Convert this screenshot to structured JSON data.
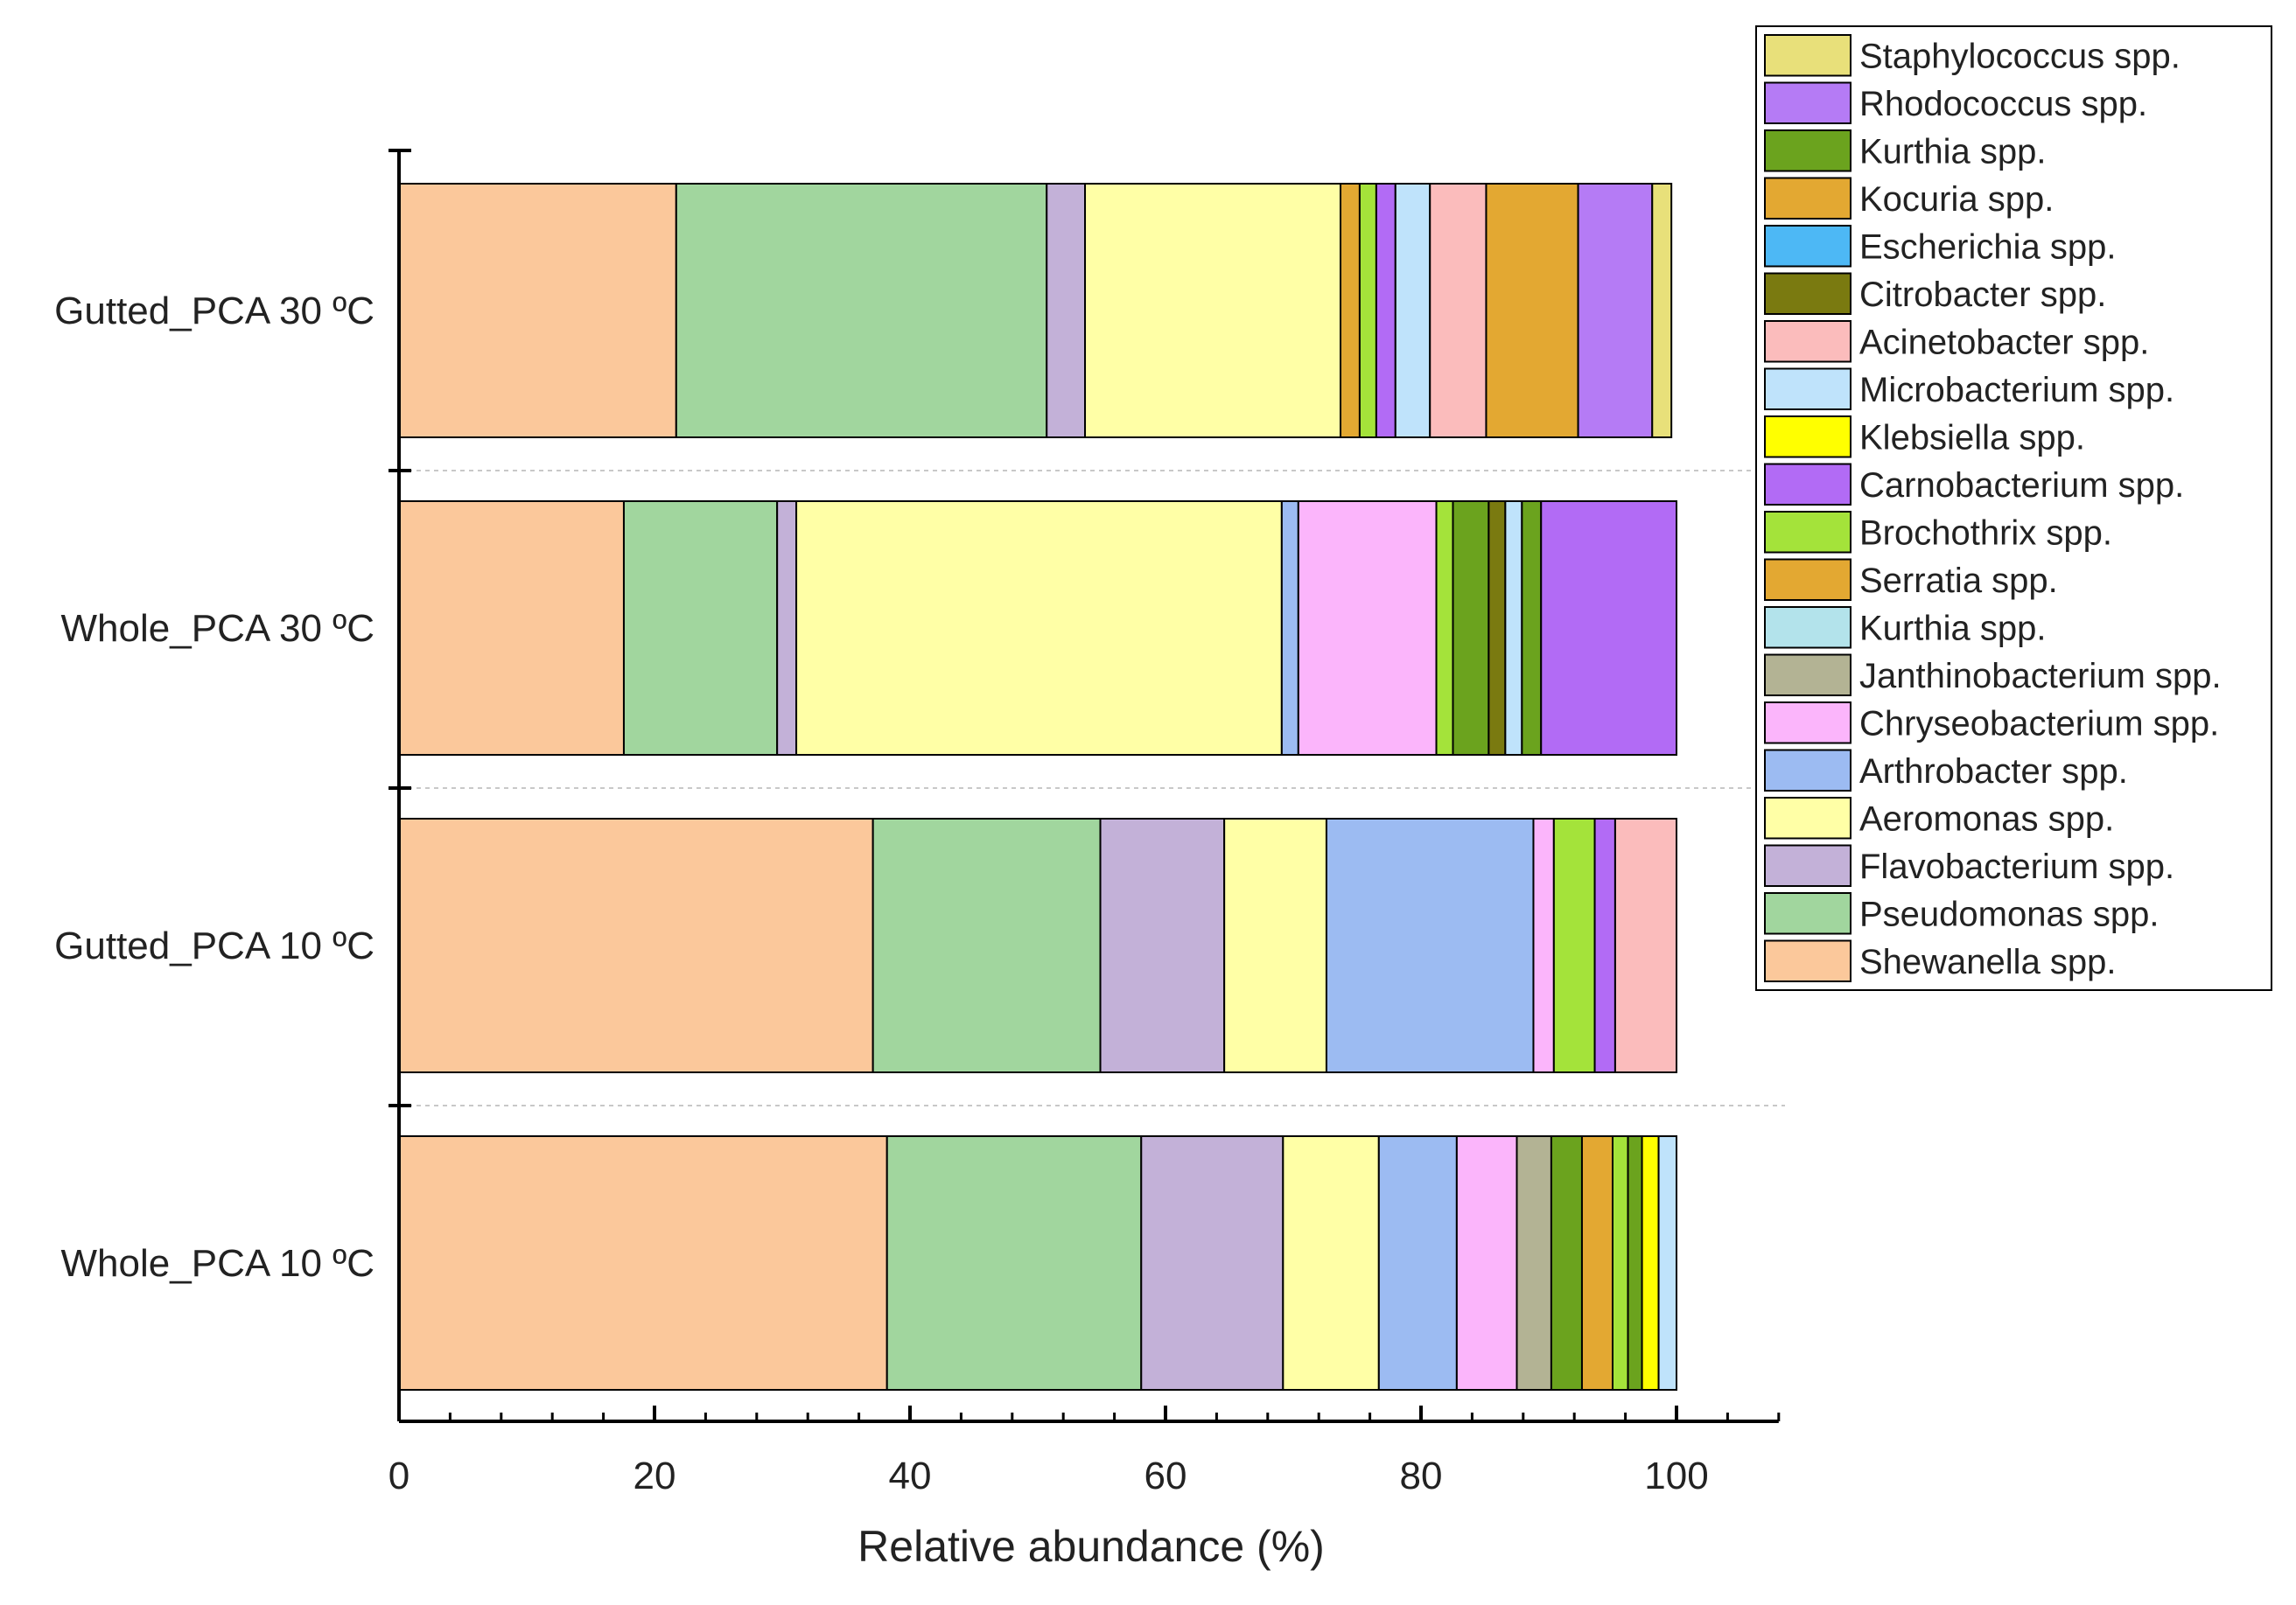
{
  "chart_data": {
    "type": "bar",
    "orientation": "horizontal",
    "stacked": true,
    "title": "",
    "xlabel": "Relative abundance (%)",
    "ylabel": "",
    "xlim": [
      0,
      108
    ],
    "xticks": [
      0,
      20,
      40,
      60,
      80,
      100
    ],
    "legend_position": "top-right",
    "categories": [
      "Gutted_PCA 30 ºC",
      "Whole_PCA 30 ºC",
      "Gutted_PCA 10 ºC",
      "Whole_PCA 10 ºC"
    ],
    "legend": [
      {
        "name": "Staphylococcus spp.",
        "color": "#E8E07A"
      },
      {
        "name": "Rhodococcus spp.",
        "color": "#B57BF5"
      },
      {
        "name": "Kurthia spp.",
        "color": "#6BA31E"
      },
      {
        "name": "Kocuria spp.",
        "color": "#E3A832"
      },
      {
        "name": "Escherichia spp.",
        "color": "#4DB8F5"
      },
      {
        "name": "Citrobacter spp.",
        "color": "#7A7A10"
      },
      {
        "name": "Acinetobacter spp.",
        "color": "#FBBCBC"
      },
      {
        "name": "Microbacterium spp.",
        "color": "#BFE3FB"
      },
      {
        "name": "Klebsiella spp.",
        "color": "#FFFF00"
      },
      {
        "name": "Carnobacterium spp.",
        "color": "#B26BF5"
      },
      {
        "name": "Brochothrix spp.",
        "color": "#A4E33A"
      },
      {
        "name": "Serratia spp.",
        "color": "#E3A832"
      },
      {
        "name": "Kurthia spp.",
        "color": "#B3E3EB"
      },
      {
        "name": "Janthinobacterium spp.",
        "color": "#B3B394"
      },
      {
        "name": "Chryseobacterium spp.",
        "color": "#FBB5FB"
      },
      {
        "name": "Arthrobacter spp.",
        "color": "#9CBBF2"
      },
      {
        "name": "Aeromonas spp.",
        "color": "#FFFFA6"
      },
      {
        "name": "Flavobacterium spp.",
        "color": "#C3B1D8"
      },
      {
        "name": "Pseudomonas spp.",
        "color": "#A1D69E"
      },
      {
        "name": "Shewanella spp.",
        "color": "#FBC89B"
      }
    ],
    "rows": [
      {
        "category": "Gutted_PCA 30 ºC",
        "segments": [
          {
            "name": "Shewanella spp.",
            "value": 21.7
          },
          {
            "name": "Pseudomonas spp.",
            "value": 29.0
          },
          {
            "name": "Flavobacterium spp.",
            "value": 3.0
          },
          {
            "name": "Aeromonas spp.",
            "value": 20.0
          },
          {
            "name": "Kocuria spp.",
            "value": 1.5
          },
          {
            "name": "Brochothrix spp.",
            "value": 1.3
          },
          {
            "name": "Carnobacterium spp.",
            "value": 1.5
          },
          {
            "name": "Microbacterium spp.",
            "value": 2.7
          },
          {
            "name": "Acinetobacter spp.",
            "value": 4.4
          },
          {
            "name": "Serratia spp.",
            "value": 7.2
          },
          {
            "name": "Rhodococcus spp.",
            "value": 5.8
          },
          {
            "name": "Staphylococcus spp.",
            "value": 1.5
          }
        ]
      },
      {
        "category": "Whole_PCA 30 ºC",
        "segments": [
          {
            "name": "Shewanella spp.",
            "value": 17.6
          },
          {
            "name": "Pseudomonas spp.",
            "value": 12.0
          },
          {
            "name": "Flavobacterium spp.",
            "value": 1.5
          },
          {
            "name": "Aeromonas spp.",
            "value": 38.0
          },
          {
            "name": "Arthrobacter spp.",
            "value": 1.3
          },
          {
            "name": "Chryseobacterium spp.",
            "value": 10.8
          },
          {
            "name": "Brochothrix spp.",
            "value": 1.3
          },
          {
            "name": "Kurthia spp.",
            "value": 2.8
          },
          {
            "name": "Citrobacter spp.",
            "value": 1.3
          },
          {
            "name": "Microbacterium spp.",
            "value": 1.3
          },
          {
            "name": "Kurthia spp.",
            "value": 1.5
          },
          {
            "name": "Carnobacterium spp.",
            "value": 10.6
          }
        ]
      },
      {
        "category": "Gutted_PCA 10 ºC",
        "segments": [
          {
            "name": "Shewanella spp.",
            "value": 37.1
          },
          {
            "name": "Pseudomonas spp.",
            "value": 17.8
          },
          {
            "name": "Flavobacterium spp.",
            "value": 9.7
          },
          {
            "name": "Aeromonas spp.",
            "value": 8.0
          },
          {
            "name": "Arthrobacter spp.",
            "value": 16.2
          },
          {
            "name": "Chryseobacterium spp.",
            "value": 1.6
          },
          {
            "name": "Brochothrix spp.",
            "value": 3.2
          },
          {
            "name": "Carnobacterium spp.",
            "value": 1.6
          },
          {
            "name": "Acinetobacter spp.",
            "value": 4.8
          }
        ]
      },
      {
        "category": "Whole_PCA 10 ºC",
        "segments": [
          {
            "name": "Shewanella spp.",
            "value": 38.2
          },
          {
            "name": "Pseudomonas spp.",
            "value": 19.9
          },
          {
            "name": "Flavobacterium spp.",
            "value": 11.1
          },
          {
            "name": "Aeromonas spp.",
            "value": 7.5
          },
          {
            "name": "Arthrobacter spp.",
            "value": 6.1
          },
          {
            "name": "Chryseobacterium spp.",
            "value": 4.7
          },
          {
            "name": "Janthinobacterium spp.",
            "value": 2.7
          },
          {
            "name": "Kurthia spp.",
            "value": 2.4
          },
          {
            "name": "Serratia spp.",
            "value": 2.4
          },
          {
            "name": "Brochothrix spp.",
            "value": 1.2
          },
          {
            "name": "Kurthia spp.",
            "value": 1.1
          },
          {
            "name": "Klebsiella spp.",
            "value": 1.3
          },
          {
            "name": "Microbacterium spp.",
            "value": 1.4
          }
        ]
      }
    ]
  }
}
